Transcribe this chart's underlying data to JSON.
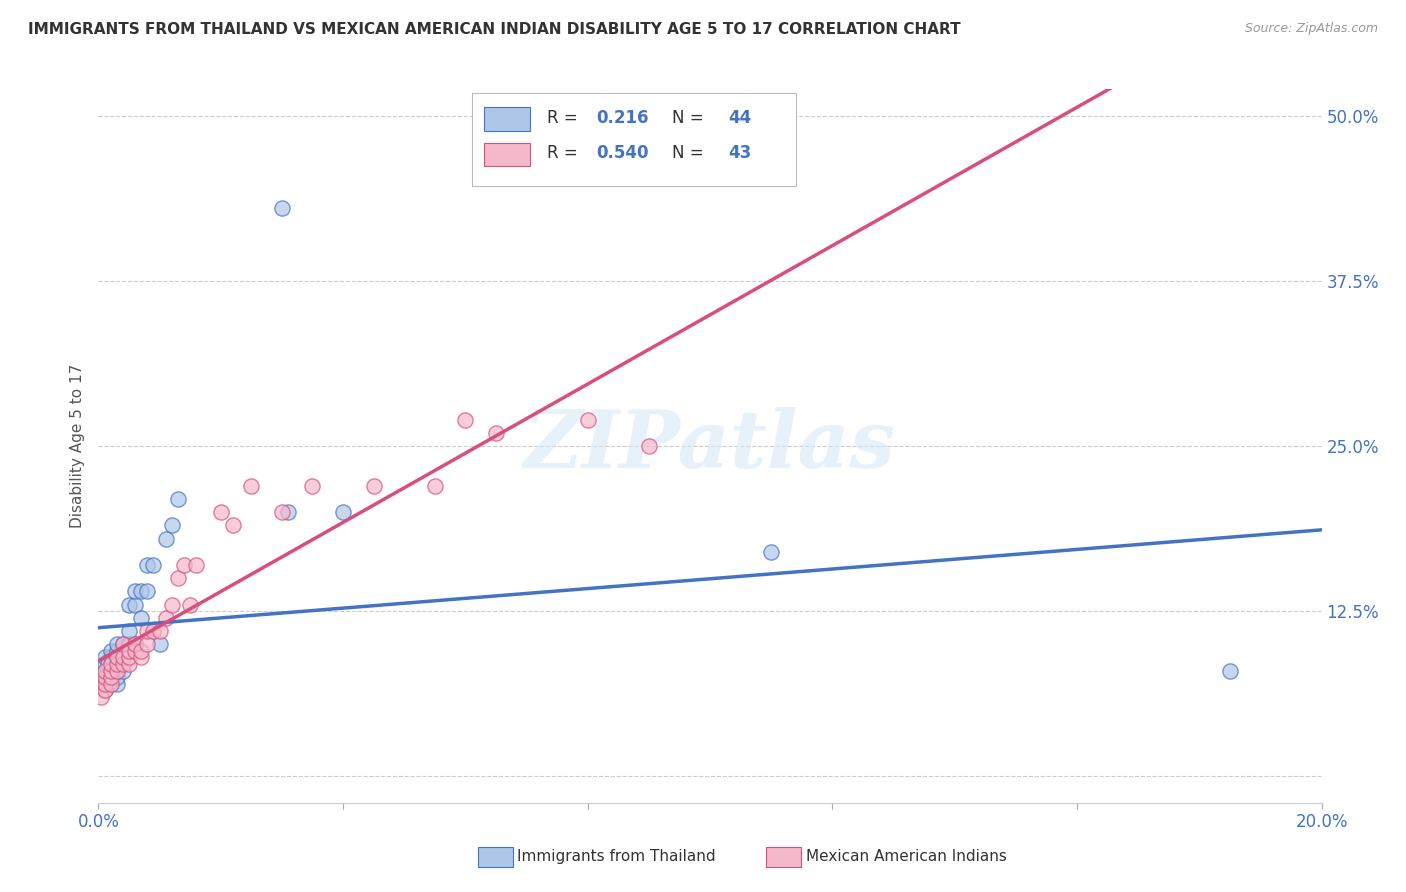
{
  "title": "IMMIGRANTS FROM THAILAND VS MEXICAN AMERICAN INDIAN DISABILITY AGE 5 TO 17 CORRELATION CHART",
  "source": "Source: ZipAtlas.com",
  "ylabel": "Disability Age 5 to 17",
  "xlim": [
    0.0,
    0.2
  ],
  "ylim": [
    -0.02,
    0.52
  ],
  "color_thailand": "#aec6e8",
  "color_mexico": "#f4b8cb",
  "color_line_thailand": "#4472c4",
  "color_line_mexico": "#d94f7a",
  "watermark": "ZIPatlas",
  "thailand_x": [
    0.0005,
    0.001,
    0.001,
    0.001,
    0.001,
    0.001,
    0.001,
    0.0015,
    0.0015,
    0.002,
    0.002,
    0.002,
    0.002,
    0.002,
    0.003,
    0.003,
    0.003,
    0.003,
    0.003,
    0.003,
    0.003,
    0.004,
    0.004,
    0.004,
    0.005,
    0.005,
    0.005,
    0.006,
    0.006,
    0.006,
    0.007,
    0.007,
    0.008,
    0.008,
    0.009,
    0.01,
    0.011,
    0.012,
    0.013,
    0.03,
    0.031,
    0.04,
    0.11,
    0.185
  ],
  "thailand_y": [
    0.07,
    0.065,
    0.07,
    0.075,
    0.08,
    0.085,
    0.09,
    0.075,
    0.085,
    0.07,
    0.075,
    0.08,
    0.09,
    0.095,
    0.07,
    0.075,
    0.08,
    0.085,
    0.09,
    0.095,
    0.1,
    0.08,
    0.09,
    0.1,
    0.1,
    0.11,
    0.13,
    0.1,
    0.13,
    0.14,
    0.12,
    0.14,
    0.14,
    0.16,
    0.16,
    0.1,
    0.18,
    0.19,
    0.21,
    0.43,
    0.2,
    0.2,
    0.17,
    0.08
  ],
  "mexico_x": [
    0.0005,
    0.001,
    0.001,
    0.001,
    0.001,
    0.002,
    0.002,
    0.002,
    0.002,
    0.003,
    0.003,
    0.003,
    0.004,
    0.004,
    0.004,
    0.005,
    0.005,
    0.005,
    0.006,
    0.006,
    0.007,
    0.007,
    0.008,
    0.008,
    0.009,
    0.01,
    0.011,
    0.012,
    0.013,
    0.014,
    0.015,
    0.016,
    0.02,
    0.022,
    0.025,
    0.03,
    0.035,
    0.045,
    0.055,
    0.06,
    0.065,
    0.08,
    0.09
  ],
  "mexico_y": [
    0.06,
    0.065,
    0.07,
    0.075,
    0.08,
    0.07,
    0.075,
    0.08,
    0.085,
    0.08,
    0.085,
    0.09,
    0.085,
    0.09,
    0.1,
    0.085,
    0.09,
    0.095,
    0.095,
    0.1,
    0.09,
    0.095,
    0.1,
    0.11,
    0.11,
    0.11,
    0.12,
    0.13,
    0.15,
    0.16,
    0.13,
    0.16,
    0.2,
    0.19,
    0.22,
    0.2,
    0.22,
    0.22,
    0.22,
    0.27,
    0.26,
    0.27,
    0.25
  ]
}
